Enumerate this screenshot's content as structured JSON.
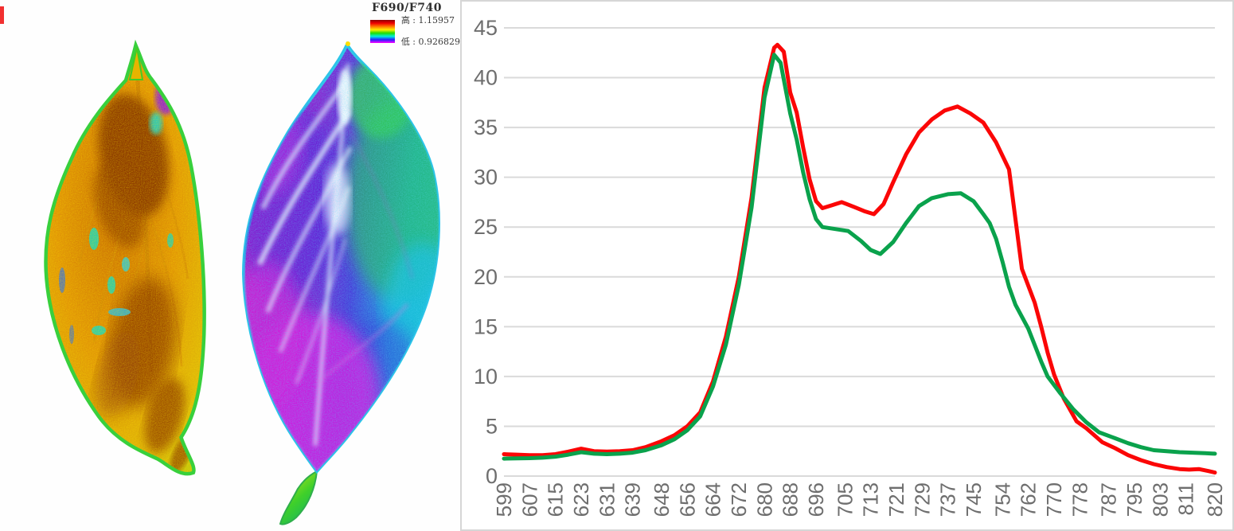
{
  "legend": {
    "title": "F690/F740",
    "high_text": "高 : 1.15957",
    "low_text": "低 : 0.926829",
    "colorbar_colors": [
      "#8b0000",
      "#ee0000",
      "#ff7700",
      "#ffee00",
      "#22dd00",
      "#00eedd",
      "#2222ff",
      "#ff00ff"
    ]
  },
  "chart_data": {
    "type": "line",
    "title": "",
    "xlabel": "",
    "ylabel": "",
    "x_range": [
      599,
      820
    ],
    "ylim": [
      0,
      45
    ],
    "grid": true,
    "legend_position": "none",
    "y_ticks": [
      0,
      5,
      10,
      15,
      20,
      25,
      30,
      35,
      40,
      45
    ],
    "x_tick_labels": [
      "599",
      "607",
      "615",
      "623",
      "631",
      "639",
      "648",
      "656",
      "664",
      "672",
      "680",
      "688",
      "696",
      "705",
      "713",
      "721",
      "729",
      "737",
      "745",
      "754",
      "762",
      "770",
      "778",
      "787",
      "795",
      "803",
      "811",
      "820"
    ],
    "series": [
      {
        "name": "red",
        "color": "#fb0606",
        "points": [
          [
            599,
            2.2
          ],
          [
            603,
            2.15
          ],
          [
            607,
            2.1
          ],
          [
            611,
            2.1
          ],
          [
            615,
            2.2
          ],
          [
            619,
            2.45
          ],
          [
            623,
            2.75
          ],
          [
            627,
            2.5
          ],
          [
            631,
            2.45
          ],
          [
            635,
            2.5
          ],
          [
            639,
            2.6
          ],
          [
            643,
            2.9
          ],
          [
            648,
            3.5
          ],
          [
            652,
            4.1
          ],
          [
            656,
            5.0
          ],
          [
            660,
            6.4
          ],
          [
            664,
            9.5
          ],
          [
            668,
            14.0
          ],
          [
            672,
            20.0
          ],
          [
            676,
            28.0
          ],
          [
            680,
            39.0
          ],
          [
            683,
            43.0
          ],
          [
            684,
            43.3
          ],
          [
            686,
            42.6
          ],
          [
            688,
            38.5
          ],
          [
            690,
            36.5
          ],
          [
            692,
            33.0
          ],
          [
            694,
            29.8
          ],
          [
            696,
            27.6
          ],
          [
            698,
            26.9
          ],
          [
            701,
            27.2
          ],
          [
            704,
            27.5
          ],
          [
            708,
            27.0
          ],
          [
            711,
            26.6
          ],
          [
            714,
            26.3
          ],
          [
            717,
            27.3
          ],
          [
            720,
            29.5
          ],
          [
            724,
            32.3
          ],
          [
            728,
            34.5
          ],
          [
            732,
            35.8
          ],
          [
            736,
            36.7
          ],
          [
            740,
            37.1
          ],
          [
            744,
            36.4
          ],
          [
            748,
            35.5
          ],
          [
            752,
            33.5
          ],
          [
            756,
            30.8
          ],
          [
            760,
            20.8
          ],
          [
            764,
            17.4
          ],
          [
            766,
            15.0
          ],
          [
            768,
            12.4
          ],
          [
            770,
            10.2
          ],
          [
            773,
            7.8
          ],
          [
            777,
            5.5
          ],
          [
            780,
            4.8
          ],
          [
            785,
            3.4
          ],
          [
            789,
            2.8
          ],
          [
            793,
            2.1
          ],
          [
            797,
            1.6
          ],
          [
            801,
            1.2
          ],
          [
            805,
            0.9
          ],
          [
            809,
            0.7
          ],
          [
            812,
            0.65
          ],
          [
            815,
            0.7
          ],
          [
            818,
            0.5
          ],
          [
            820,
            0.35
          ]
        ]
      },
      {
        "name": "green",
        "color": "#0aa24c",
        "points": [
          [
            599,
            1.75
          ],
          [
            603,
            1.78
          ],
          [
            607,
            1.8
          ],
          [
            611,
            1.85
          ],
          [
            615,
            1.95
          ],
          [
            619,
            2.15
          ],
          [
            623,
            2.4
          ],
          [
            627,
            2.25
          ],
          [
            631,
            2.2
          ],
          [
            635,
            2.25
          ],
          [
            639,
            2.35
          ],
          [
            643,
            2.6
          ],
          [
            648,
            3.1
          ],
          [
            652,
            3.7
          ],
          [
            656,
            4.6
          ],
          [
            660,
            6.0
          ],
          [
            664,
            9.0
          ],
          [
            668,
            13.2
          ],
          [
            672,
            19.2
          ],
          [
            676,
            27.0
          ],
          [
            680,
            38.0
          ],
          [
            683,
            42.3
          ],
          [
            685,
            41.5
          ],
          [
            688,
            36.4
          ],
          [
            690,
            33.8
          ],
          [
            692,
            30.5
          ],
          [
            694,
            27.8
          ],
          [
            696,
            25.8
          ],
          [
            698,
            25.0
          ],
          [
            702,
            24.8
          ],
          [
            706,
            24.6
          ],
          [
            710,
            23.6
          ],
          [
            713,
            22.7
          ],
          [
            716,
            22.3
          ],
          [
            720,
            23.5
          ],
          [
            724,
            25.4
          ],
          [
            728,
            27.1
          ],
          [
            732,
            27.9
          ],
          [
            737,
            28.3
          ],
          [
            741,
            28.4
          ],
          [
            745,
            27.6
          ],
          [
            748,
            26.3
          ],
          [
            750,
            25.4
          ],
          [
            752,
            23.8
          ],
          [
            754,
            21.5
          ],
          [
            756,
            19.0
          ],
          [
            758,
            17.2
          ],
          [
            762,
            14.8
          ],
          [
            766,
            11.5
          ],
          [
            768,
            10.0
          ],
          [
            772,
            8.3
          ],
          [
            776,
            6.7
          ],
          [
            780,
            5.4
          ],
          [
            784,
            4.4
          ],
          [
            789,
            3.8
          ],
          [
            793,
            3.3
          ],
          [
            797,
            2.9
          ],
          [
            801,
            2.6
          ],
          [
            805,
            2.5
          ],
          [
            809,
            2.4
          ],
          [
            813,
            2.35
          ],
          [
            817,
            2.3
          ],
          [
            820,
            2.25
          ]
        ]
      }
    ]
  }
}
